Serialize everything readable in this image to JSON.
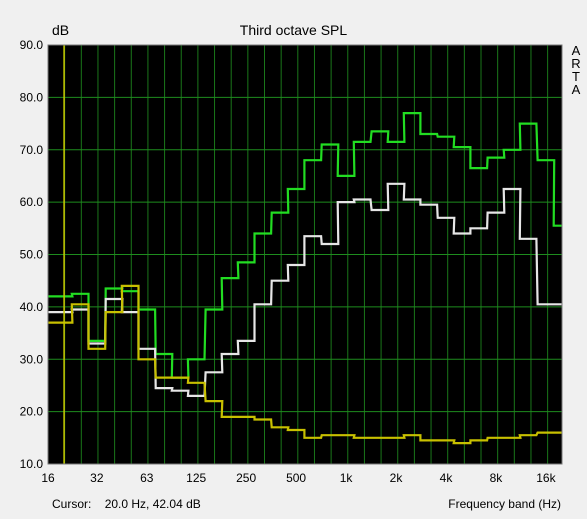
{
  "chart_data": {
    "type": "line",
    "title": "Third octave SPL",
    "ylabel": "dB",
    "xlabel": "Frequency band (Hz)",
    "ylim": [
      10,
      90
    ],
    "yticks": [
      "90.0",
      "80.0",
      "70.0",
      "60.0",
      "50.0",
      "40.0",
      "30.0",
      "20.0",
      "10.0"
    ],
    "xtick_labels": [
      "16",
      "32",
      "63",
      "125",
      "250",
      "500",
      "1k",
      "2k",
      "4k",
      "8k",
      "16k"
    ],
    "background": "#000000",
    "grid_color": "#1e8c1e",
    "grid": true,
    "cursor_frequency_hz": 20,
    "cursor_color": "#c8c800",
    "bands_hz": [
      16,
      20,
      25,
      31.5,
      40,
      50,
      63,
      80,
      100,
      125,
      160,
      200,
      250,
      315,
      400,
      500,
      630,
      800,
      1000,
      1250,
      1600,
      2000,
      2500,
      3150,
      4000,
      5000,
      6300,
      8000,
      10000,
      12500,
      16000,
      20000
    ],
    "series": [
      {
        "color": "#22dd22",
        "values": [
          42.0,
          42.0,
          42.5,
          33.5,
          43.5,
          43.0,
          39.5,
          31.0,
          26.5,
          30.0,
          39.5,
          45.5,
          48.5,
          54.0,
          58.0,
          62.5,
          68.0,
          71.0,
          65.0,
          71.5,
          73.5,
          71.5,
          77.0,
          73.0,
          72.5,
          70.5,
          66.5,
          68.5,
          70.0,
          75.0,
          68.0,
          55.5
        ]
      },
      {
        "color": "#e6e6e6",
        "values": [
          39.0,
          39.0,
          39.5,
          33.0,
          41.5,
          39.0,
          32.0,
          24.5,
          24.0,
          23.0,
          27.5,
          31.0,
          33.5,
          40.5,
          45.0,
          48.0,
          53.5,
          52.0,
          60.0,
          60.5,
          58.5,
          63.5,
          60.5,
          59.5,
          57.0,
          54.0,
          55.0,
          58.0,
          62.5,
          53.0,
          40.5,
          40.5
        ]
      },
      {
        "color": "#c8c000",
        "values": [
          37.0,
          37.0,
          40.5,
          32.0,
          39.0,
          44.0,
          30.0,
          26.5,
          26.5,
          25.5,
          22.0,
          19.0,
          19.0,
          18.5,
          17.0,
          16.5,
          15.0,
          15.5,
          15.5,
          15.0,
          15.0,
          15.0,
          15.5,
          14.5,
          14.5,
          14.0,
          14.5,
          15.0,
          15.0,
          15.5,
          16.0,
          16.0
        ]
      }
    ]
  },
  "brand_letters": [
    "A",
    "R",
    "T",
    "A"
  ],
  "status": {
    "cursor_label": "Cursor:",
    "cursor_value": "20.0 Hz, 42.04 dB"
  }
}
